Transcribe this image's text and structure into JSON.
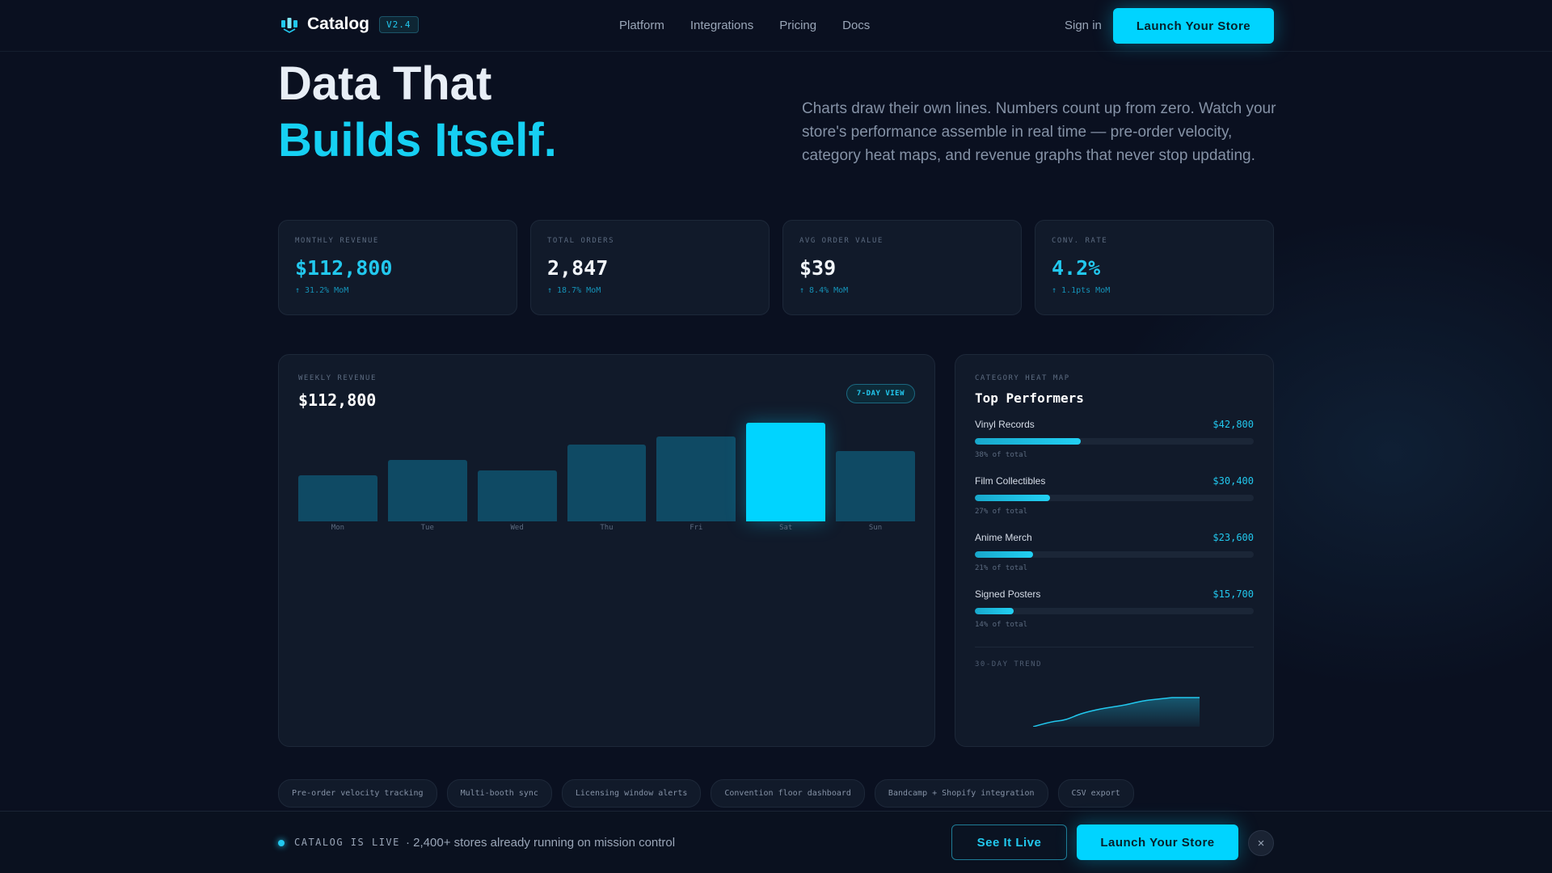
{
  "nav": {
    "brand": "Catalog",
    "version": "V2.4",
    "links": [
      "Platform",
      "Integrations",
      "Pricing",
      "Docs"
    ],
    "sign_in": "Sign in",
    "cta": "Launch Your Store"
  },
  "hero": {
    "line1": "Data That",
    "line2": "Builds Itself.",
    "description": "Charts draw their own lines. Numbers count up from zero. Watch your store's performance assemble in real time — pre-order velocity, category heat maps, and revenue graphs that never stop updating."
  },
  "stats": [
    {
      "label": "MONTHLY REVENUE",
      "value": "$112,800",
      "change": "↑ 31.2% MoM",
      "accent": "#22c8ee"
    },
    {
      "label": "TOTAL ORDERS",
      "value": "2,847",
      "change": "↑ 18.7% MoM",
      "accent": "#f2f6fb"
    },
    {
      "label": "AVG ORDER VALUE",
      "value": "$39",
      "change": "↑ 8.4% MoM",
      "accent": "#f2f6fb"
    },
    {
      "label": "CONV. RATE",
      "value": "4.2%",
      "change": "↑ 1.1pts MoM",
      "accent": "#22c8ee"
    }
  ],
  "revenue": {
    "label": "WEEKLY REVENUE",
    "total": "$112,800",
    "badge": "7-DAY VIEW"
  },
  "chart_data": {
    "type": "bar",
    "categories": [
      "Mon",
      "Tue",
      "Wed",
      "Thu",
      "Fri",
      "Sat",
      "Sun"
    ],
    "values": [
      47,
      62,
      52,
      78,
      86,
      100,
      71
    ],
    "highlight_index": 5,
    "colors": {
      "default": "#0f4a64",
      "highlight": "#00d4ff"
    }
  },
  "categories": {
    "label": "CATEGORY HEAT MAP",
    "title": "Top Performers",
    "items": [
      {
        "name": "Vinyl Records",
        "value": "$42,800",
        "pct_label": "38% of total",
        "share": 0.38
      },
      {
        "name": "Film Collectibles",
        "value": "$30,400",
        "pct_label": "27% of total",
        "share": 0.27
      },
      {
        "name": "Anime Merch",
        "value": "$23,600",
        "pct_label": "21% of total",
        "share": 0.21
      },
      {
        "name": "Signed Posters",
        "value": "$15,700",
        "pct_label": "14% of total",
        "share": 0.14
      }
    ],
    "trend_label": "30-DAY TREND"
  },
  "chips": [
    "Pre-order velocity tracking",
    "Multi-booth sync",
    "Licensing window alerts",
    "Convention floor dashboard",
    "Bandcamp + Shopify integration",
    "CSV export"
  ],
  "bottom": {
    "live_label": "CATALOG IS LIVE",
    "live_text": "· 2,400+ stores already running on mission control",
    "see_live": "See It Live",
    "cta": "Launch Your Store",
    "close": "×"
  },
  "colors": {
    "accent": "#00d4ff",
    "background": "#0a1020",
    "card": "#111a2a"
  }
}
